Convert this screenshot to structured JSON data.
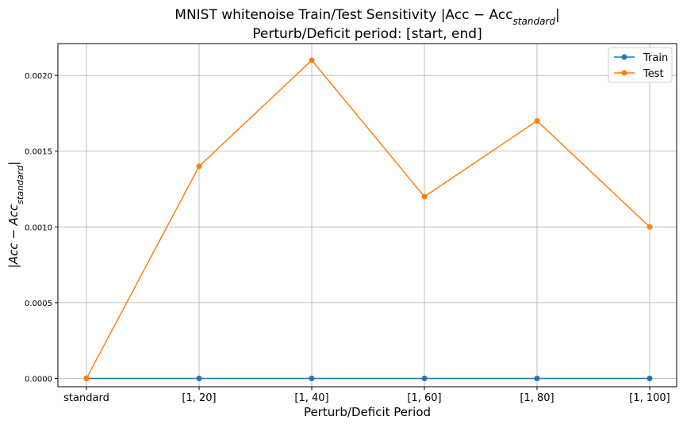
{
  "chart_data": {
    "type": "line",
    "title": "MNIST whitenoise Train/Test Sensitivity |Acc − Acc",
    "title_sub": "standard",
    "title_end": "|",
    "subtitle": "Perturb/Deficit period: [start, end]",
    "xlabel": "Perturb/Deficit Period",
    "ylabel": "|Acc − Acc",
    "ylabel_sub": "standard",
    "ylabel_end": "|",
    "categories": [
      "standard",
      "[1, 20]",
      "[1, 40]",
      "[1, 60]",
      "[1, 80]",
      "[1, 100]"
    ],
    "yticks": [
      "0.0000",
      "0.0005",
      "0.0010",
      "0.0015",
      "0.0020"
    ],
    "ylim": [
      -5.5e-05,
      0.00221
    ],
    "grid": true,
    "legend_position": "top-right",
    "series": [
      {
        "name": "Train",
        "color": "#1f77b4",
        "values": [
          0.0,
          0.0,
          0.0,
          0.0,
          0.0,
          0.0
        ]
      },
      {
        "name": "Test",
        "color": "#ff7f0e",
        "values": [
          0.0,
          0.0014,
          0.0021,
          0.0012,
          0.0017,
          0.001
        ]
      }
    ]
  }
}
